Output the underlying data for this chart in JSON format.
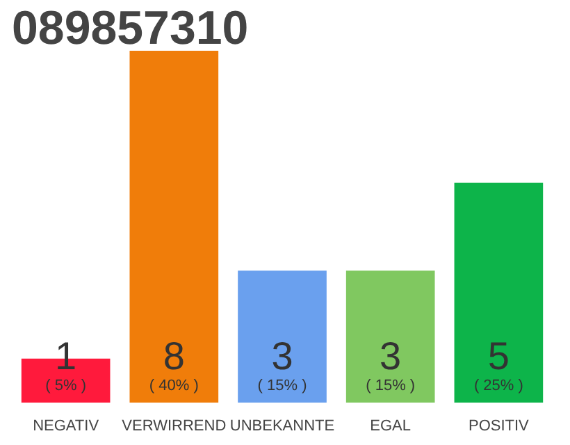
{
  "chart_data": {
    "type": "bar",
    "title": "089857310",
    "categories": [
      "NEGATIV",
      "VERWIRREND",
      "UNBEKANNTE",
      "EGAL",
      "POSITIV"
    ],
    "values": [
      1,
      8,
      3,
      3,
      5
    ],
    "colors": [
      "#ff1a3c",
      "#f07d0a",
      "#6aa0ee",
      "#80c860",
      "#0db44a"
    ],
    "value_labels": [
      "1",
      "8",
      "3",
      "3",
      "5"
    ],
    "annotations": [
      {
        "text": "( 5% )",
        "x": "NEGATIV",
        "y": 0
      },
      {
        "text": "( 40% )",
        "x": "VERWIRREND",
        "y": 0
      },
      {
        "text": "( 15% )",
        "x": "UNBEKANNTE",
        "y": 0
      },
      {
        "text": "( 15% )",
        "x": "EGAL",
        "y": 0
      },
      {
        "text": "( 25% )",
        "x": "POSITIV",
        "y": 0
      }
    ],
    "tick_labels": "x",
    "grid": false
  }
}
